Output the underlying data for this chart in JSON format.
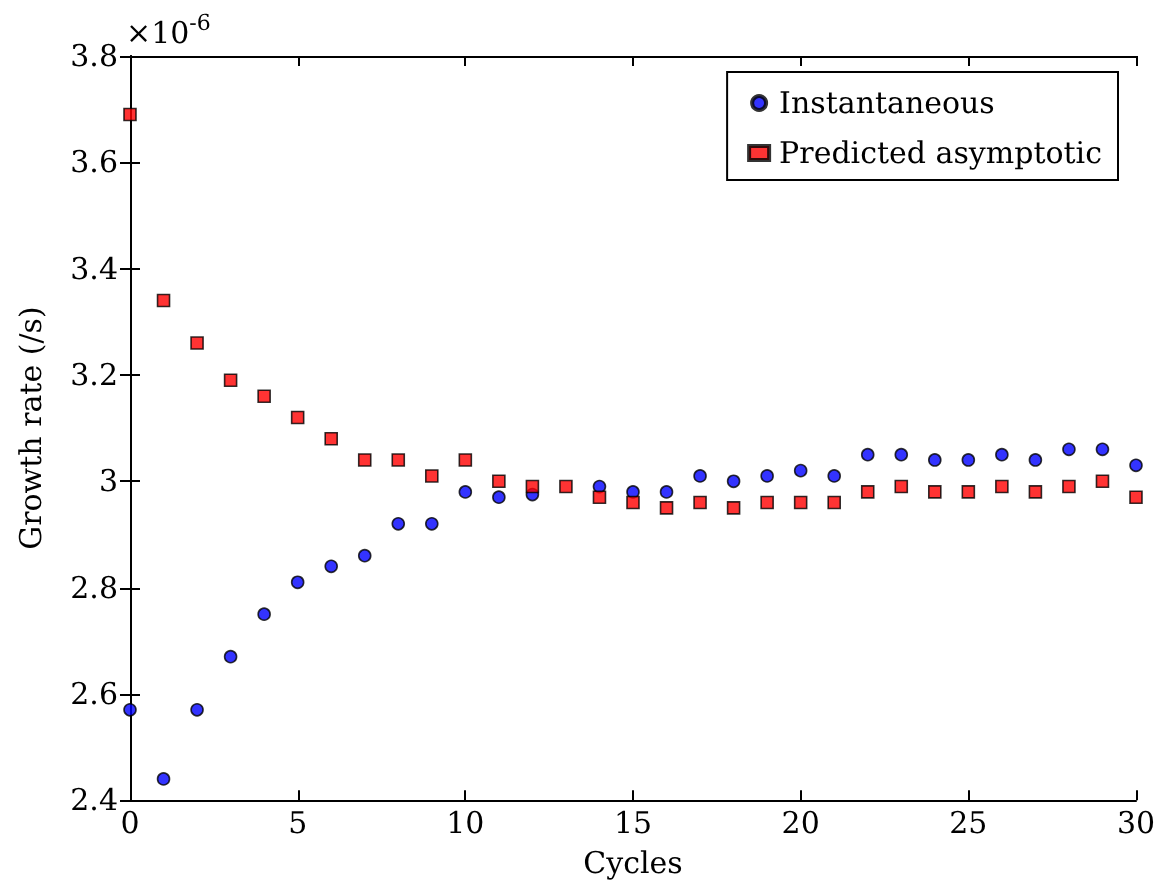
{
  "chart_data": {
    "type": "scatter",
    "xlabel": "Cycles",
    "ylabel": "Growth rate (/s)",
    "annotations": [
      "×10$^{-6}$"
    ],
    "x": [
      0,
      1,
      2,
      3,
      4,
      5,
      6,
      7,
      8,
      9,
      10,
      11,
      12,
      13,
      14,
      15,
      16,
      17,
      18,
      19,
      20,
      21,
      22,
      23,
      24,
      25,
      26,
      27,
      28,
      29,
      30
    ],
    "series": [
      {
        "name": "Instantaneous",
        "color": "#0000ff",
        "marker": "circle",
        "values": [
          2.57,
          2.44,
          2.57,
          2.67,
          2.75,
          2.81,
          2.84,
          2.86,
          2.92,
          2.92,
          2.98,
          2.97,
          2.975,
          null,
          2.99,
          2.98,
          2.98,
          3.01,
          3.0,
          3.01,
          3.02,
          3.01,
          3.05,
          3.05,
          3.04,
          3.04,
          3.05,
          3.04,
          3.06,
          3.06,
          3.03
        ]
      },
      {
        "name": "Predicted asymptotic",
        "color": "#ff0000",
        "marker": "square",
        "values": [
          3.69,
          3.34,
          3.26,
          3.19,
          3.16,
          3.12,
          3.08,
          3.04,
          3.04,
          3.01,
          3.04,
          3.0,
          2.99,
          2.99,
          2.97,
          2.96,
          2.95,
          2.96,
          2.95,
          2.96,
          2.96,
          2.96,
          2.98,
          2.99,
          2.98,
          2.98,
          2.99,
          2.98,
          2.99,
          3.0,
          2.97
        ]
      }
    ],
    "xlim": [
      0,
      30
    ],
    "xticks": [
      0,
      5,
      10,
      15,
      20,
      25,
      30
    ],
    "ylim": [
      2.4,
      3.8
    ],
    "yticks": [
      2.4,
      2.6,
      2.8,
      3.0,
      3.2,
      3.4,
      3.6,
      3.8
    ],
    "legend": "top right",
    "grid": false
  }
}
